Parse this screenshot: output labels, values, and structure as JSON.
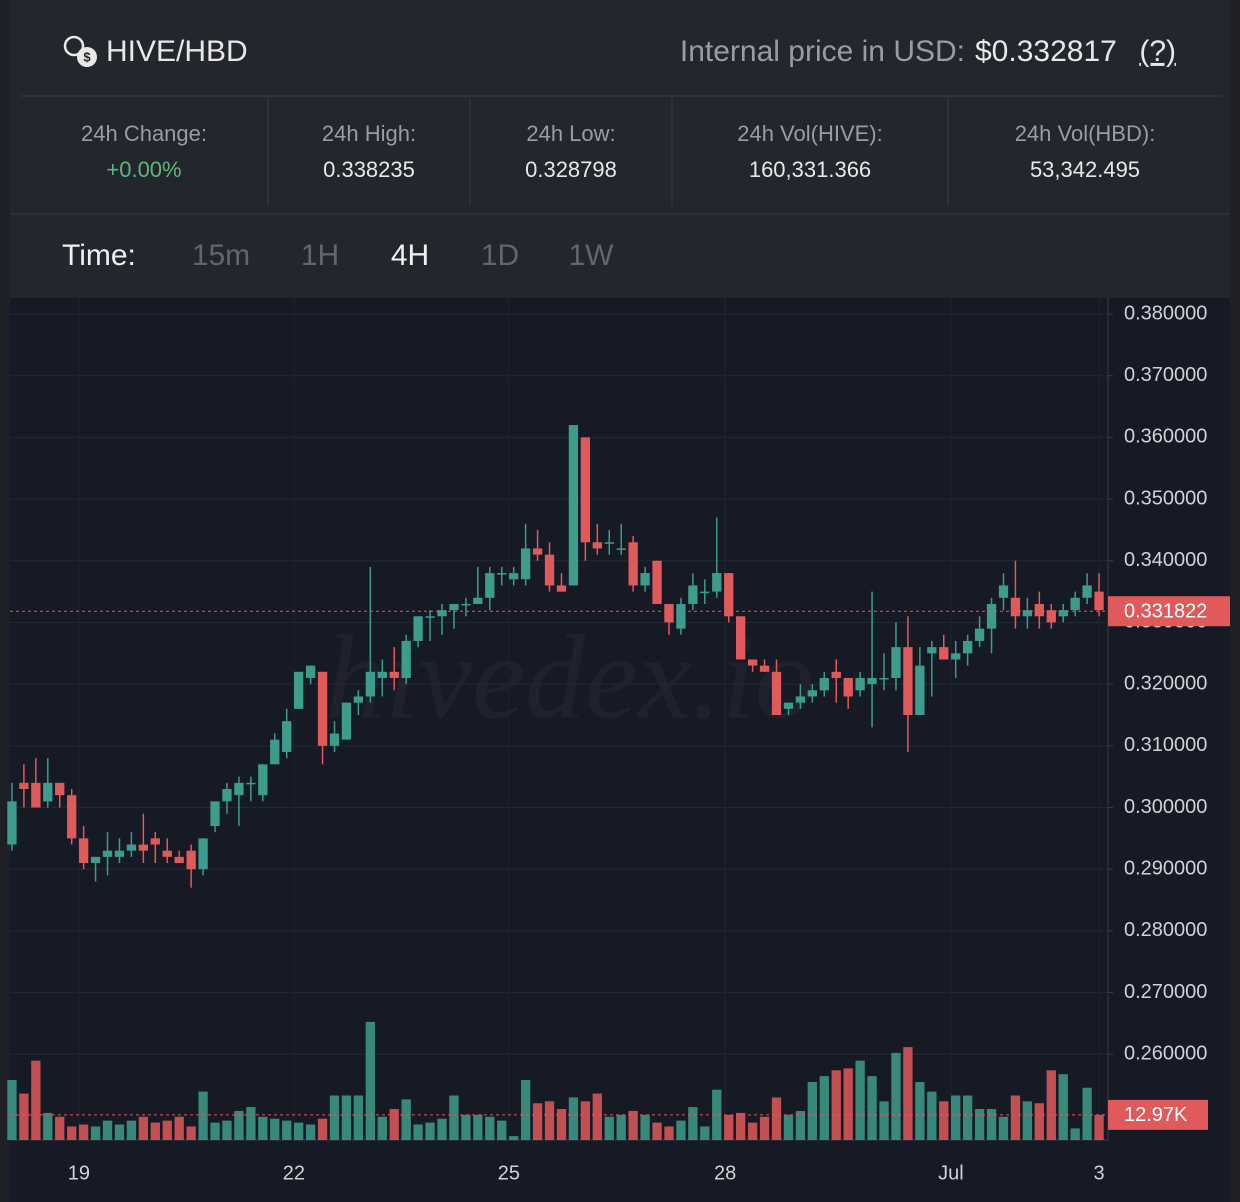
{
  "header": {
    "pair": "HIVE/HBD",
    "price_label": "Internal price in USD:",
    "price": "$0.332817",
    "help": "(?)"
  },
  "stats": [
    {
      "label": "24h Change:",
      "value": "+0.00%"
    },
    {
      "label": "24h High:",
      "value": "0.338235"
    },
    {
      "label": "24h Low:",
      "value": "0.328798"
    },
    {
      "label": "24h Vol(HIVE):",
      "value": "160,331.366"
    },
    {
      "label": "24h Vol(HBD):",
      "value": "53,342.495"
    }
  ],
  "time_selector": {
    "label": "Time:",
    "options": [
      "15m",
      "1H",
      "4H",
      "1D",
      "1W"
    ],
    "active": "4H"
  },
  "chart_data": {
    "type": "candlestick",
    "watermark": "hivedex.io",
    "up_color": "#3e9c8c",
    "down_color": "#e0595b",
    "open": [
      0.294,
      0.304,
      0.304,
      0.301,
      0.304,
      0.302,
      0.295,
      0.291,
      0.292,
      0.292,
      0.293,
      0.294,
      0.295,
      0.293,
      0.292,
      0.293,
      0.29,
      0.297,
      0.301,
      0.302,
      0.304,
      0.302,
      0.307,
      0.309,
      0.316,
      0.321,
      0.322,
      0.31,
      0.311,
      0.317,
      0.318,
      0.321,
      0.322,
      0.321,
      0.327,
      0.331,
      0.331,
      0.332,
      0.333,
      0.333,
      0.334,
      0.338,
      0.337,
      0.337,
      0.342,
      0.341,
      0.336,
      0.336,
      0.36,
      0.343,
      0.343,
      0.342,
      0.343,
      0.336,
      0.34,
      0.333,
      0.329,
      0.333,
      0.335,
      0.335,
      0.338,
      0.331,
      0.324,
      0.323,
      0.322,
      0.316,
      0.317,
      0.318,
      0.319,
      0.322,
      0.321,
      0.319,
      0.32,
      0.321,
      0.321,
      0.326,
      0.315,
      0.325,
      0.326,
      0.324,
      0.325,
      0.327,
      0.329,
      0.334,
      0.334,
      0.331,
      0.333,
      0.332,
      0.331,
      0.332,
      0.334,
      0.335
    ],
    "high": [
      0.304,
      0.307,
      0.308,
      0.308,
      0.304,
      0.303,
      0.297,
      0.292,
      0.296,
      0.295,
      0.296,
      0.299,
      0.296,
      0.295,
      0.293,
      0.294,
      0.295,
      0.301,
      0.304,
      0.305,
      0.305,
      0.307,
      0.312,
      0.316,
      0.322,
      0.323,
      0.322,
      0.314,
      0.317,
      0.319,
      0.339,
      0.324,
      0.326,
      0.328,
      0.331,
      0.332,
      0.333,
      0.333,
      0.334,
      0.339,
      0.339,
      0.339,
      0.339,
      0.346,
      0.345,
      0.343,
      0.338,
      0.362,
      0.36,
      0.346,
      0.345,
      0.346,
      0.344,
      0.339,
      0.34,
      0.333,
      0.334,
      0.338,
      0.337,
      0.347,
      0.338,
      0.331,
      0.324,
      0.324,
      0.324,
      0.317,
      0.32,
      0.32,
      0.322,
      0.324,
      0.321,
      0.322,
      0.335,
      0.325,
      0.33,
      0.331,
      0.326,
      0.327,
      0.328,
      0.327,
      0.328,
      0.331,
      0.334,
      0.338,
      0.34,
      0.334,
      0.335,
      0.333,
      0.333,
      0.335,
      0.338,
      0.338
    ],
    "low": [
      0.293,
      0.3,
      0.3,
      0.3,
      0.3,
      0.294,
      0.29,
      0.288,
      0.289,
      0.291,
      0.292,
      0.291,
      0.291,
      0.291,
      0.291,
      0.287,
      0.289,
      0.296,
      0.299,
      0.297,
      0.301,
      0.301,
      0.307,
      0.308,
      0.316,
      0.32,
      0.307,
      0.309,
      0.311,
      0.315,
      0.317,
      0.318,
      0.319,
      0.32,
      0.326,
      0.327,
      0.328,
      0.329,
      0.331,
      0.333,
      0.332,
      0.336,
      0.336,
      0.336,
      0.34,
      0.335,
      0.335,
      0.336,
      0.34,
      0.341,
      0.341,
      0.341,
      0.335,
      0.335,
      0.333,
      0.328,
      0.328,
      0.332,
      0.333,
      0.334,
      0.33,
      0.324,
      0.322,
      0.322,
      0.315,
      0.315,
      0.316,
      0.317,
      0.318,
      0.317,
      0.316,
      0.318,
      0.313,
      0.319,
      0.319,
      0.309,
      0.315,
      0.318,
      0.324,
      0.321,
      0.323,
      0.326,
      0.325,
      0.332,
      0.329,
      0.329,
      0.329,
      0.329,
      0.33,
      0.331,
      0.333,
      0.331
    ],
    "close": [
      0.301,
      0.303,
      0.3,
      0.304,
      0.302,
      0.295,
      0.291,
      0.292,
      0.293,
      0.293,
      0.294,
      0.293,
      0.294,
      0.292,
      0.291,
      0.29,
      0.295,
      0.301,
      0.303,
      0.304,
      0.304,
      0.307,
      0.311,
      0.314,
      0.322,
      0.323,
      0.31,
      0.312,
      0.317,
      0.318,
      0.322,
      0.322,
      0.321,
      0.327,
      0.331,
      0.331,
      0.332,
      0.333,
      0.333,
      0.334,
      0.338,
      0.338,
      0.338,
      0.342,
      0.341,
      0.336,
      0.335,
      0.362,
      0.343,
      0.342,
      0.343,
      0.342,
      0.336,
      0.338,
      0.333,
      0.33,
      0.333,
      0.336,
      0.335,
      0.338,
      0.331,
      0.324,
      0.323,
      0.322,
      0.315,
      0.317,
      0.318,
      0.319,
      0.321,
      0.321,
      0.318,
      0.321,
      0.321,
      0.321,
      0.326,
      0.315,
      0.323,
      0.326,
      0.324,
      0.325,
      0.327,
      0.329,
      0.333,
      0.336,
      0.331,
      0.332,
      0.331,
      0.33,
      0.332,
      0.334,
      0.336,
      0.332
    ],
    "volume": [
      31,
      24,
      41,
      14,
      12,
      7,
      8,
      7,
      10,
      8,
      10,
      12,
      9,
      10,
      12,
      7,
      25,
      9,
      10,
      15,
      17,
      12,
      11,
      10,
      9,
      8,
      11,
      23,
      23,
      23,
      61,
      12,
      16,
      21,
      8,
      9,
      11,
      23,
      13,
      13,
      12,
      10,
      2,
      31,
      19,
      20,
      16,
      22,
      20,
      24,
      12,
      13,
      15,
      13,
      9,
      7,
      10,
      17,
      7,
      26,
      13,
      14,
      9,
      12,
      22,
      13,
      15,
      30,
      33,
      36,
      37,
      41,
      33,
      20,
      45,
      48,
      30,
      25,
      20,
      23,
      23,
      16,
      16,
      12,
      23,
      20,
      19,
      36,
      34,
      6,
      27,
      12.97
    ],
    "volume_axis": "y2",
    "y2lim": [
      0,
      435
    ],
    "xlim": [
      -1,
      92
    ],
    "xticks": [
      {
        "value": 5.6,
        "label": "19"
      },
      {
        "value": 23.6,
        "label": "22"
      },
      {
        "value": 41.6,
        "label": "25"
      },
      {
        "value": 59.7,
        "label": "28"
      },
      {
        "value": 78.6,
        "label": "Jul"
      },
      {
        "value": 91,
        "label": "3"
      }
    ],
    "ylim": [
      0.2461,
      0.3826
    ],
    "yticks": [
      {
        "value": 0.38,
        "label": "0.380000"
      },
      {
        "value": 0.37,
        "label": "0.370000"
      },
      {
        "value": 0.36,
        "label": "0.360000"
      },
      {
        "value": 0.35,
        "label": "0.350000"
      },
      {
        "value": 0.34,
        "label": "0.340000"
      },
      {
        "value": 0.33,
        "label": "0.330000"
      },
      {
        "value": 0.32,
        "label": "0.320000"
      },
      {
        "value": 0.31,
        "label": "0.310000"
      },
      {
        "value": 0.3,
        "label": "0.300000"
      },
      {
        "value": 0.29,
        "label": "0.290000"
      },
      {
        "value": 0.28,
        "label": "0.280000"
      },
      {
        "value": 0.27,
        "label": "0.270000"
      },
      {
        "value": 0.26,
        "label": "0.260000"
      }
    ],
    "last_price": 0.331822,
    "last_volume": {
      "value": 12.97,
      "label": "12.97K"
    },
    "grid": true
  }
}
